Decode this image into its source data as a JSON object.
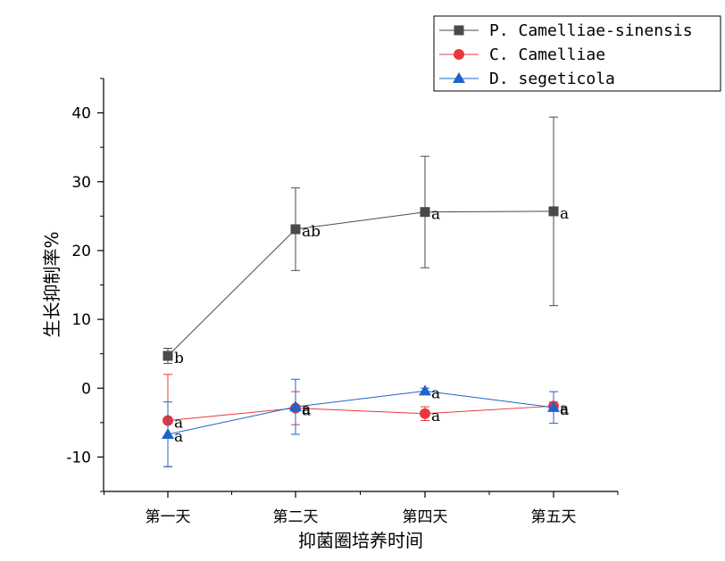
{
  "chart_data": {
    "type": "line",
    "title": "",
    "xlabel": "抑菌圈培养时间",
    "ylabel": "生长抑制率%",
    "categories": [
      "第一天",
      "第二天",
      "第四天",
      "第五天"
    ],
    "ylim": [
      -15,
      45
    ],
    "yticks": [
      -10,
      0,
      10,
      20,
      30,
      40
    ],
    "grid": false,
    "legend_position": "top-right",
    "series": [
      {
        "name": "P. Camelliae-sinensis",
        "color": "#4a4a4a",
        "marker": "square",
        "values": [
          4.7,
          23.1,
          25.6,
          25.7
        ],
        "errors": [
          1.1,
          6.0,
          8.1,
          13.7
        ],
        "labels": [
          "b",
          "ab",
          "a",
          "a"
        ]
      },
      {
        "name": "C. Camelliae",
        "color": "#e8383d",
        "marker": "circle",
        "values": [
          -4.7,
          -2.9,
          -3.7,
          -2.6
        ],
        "errors": [
          6.7,
          2.4,
          1.0,
          0.6
        ],
        "labels": [
          "a",
          "a",
          "a",
          "a"
        ]
      },
      {
        "name": "D. segeticola",
        "color": "#1e64c8",
        "marker": "triangle",
        "values": [
          -6.7,
          -2.7,
          -0.4,
          -2.8
        ],
        "errors": [
          4.7,
          4.0,
          0.4,
          2.3
        ],
        "labels": [
          "a",
          "a",
          "a",
          "a"
        ]
      }
    ]
  }
}
